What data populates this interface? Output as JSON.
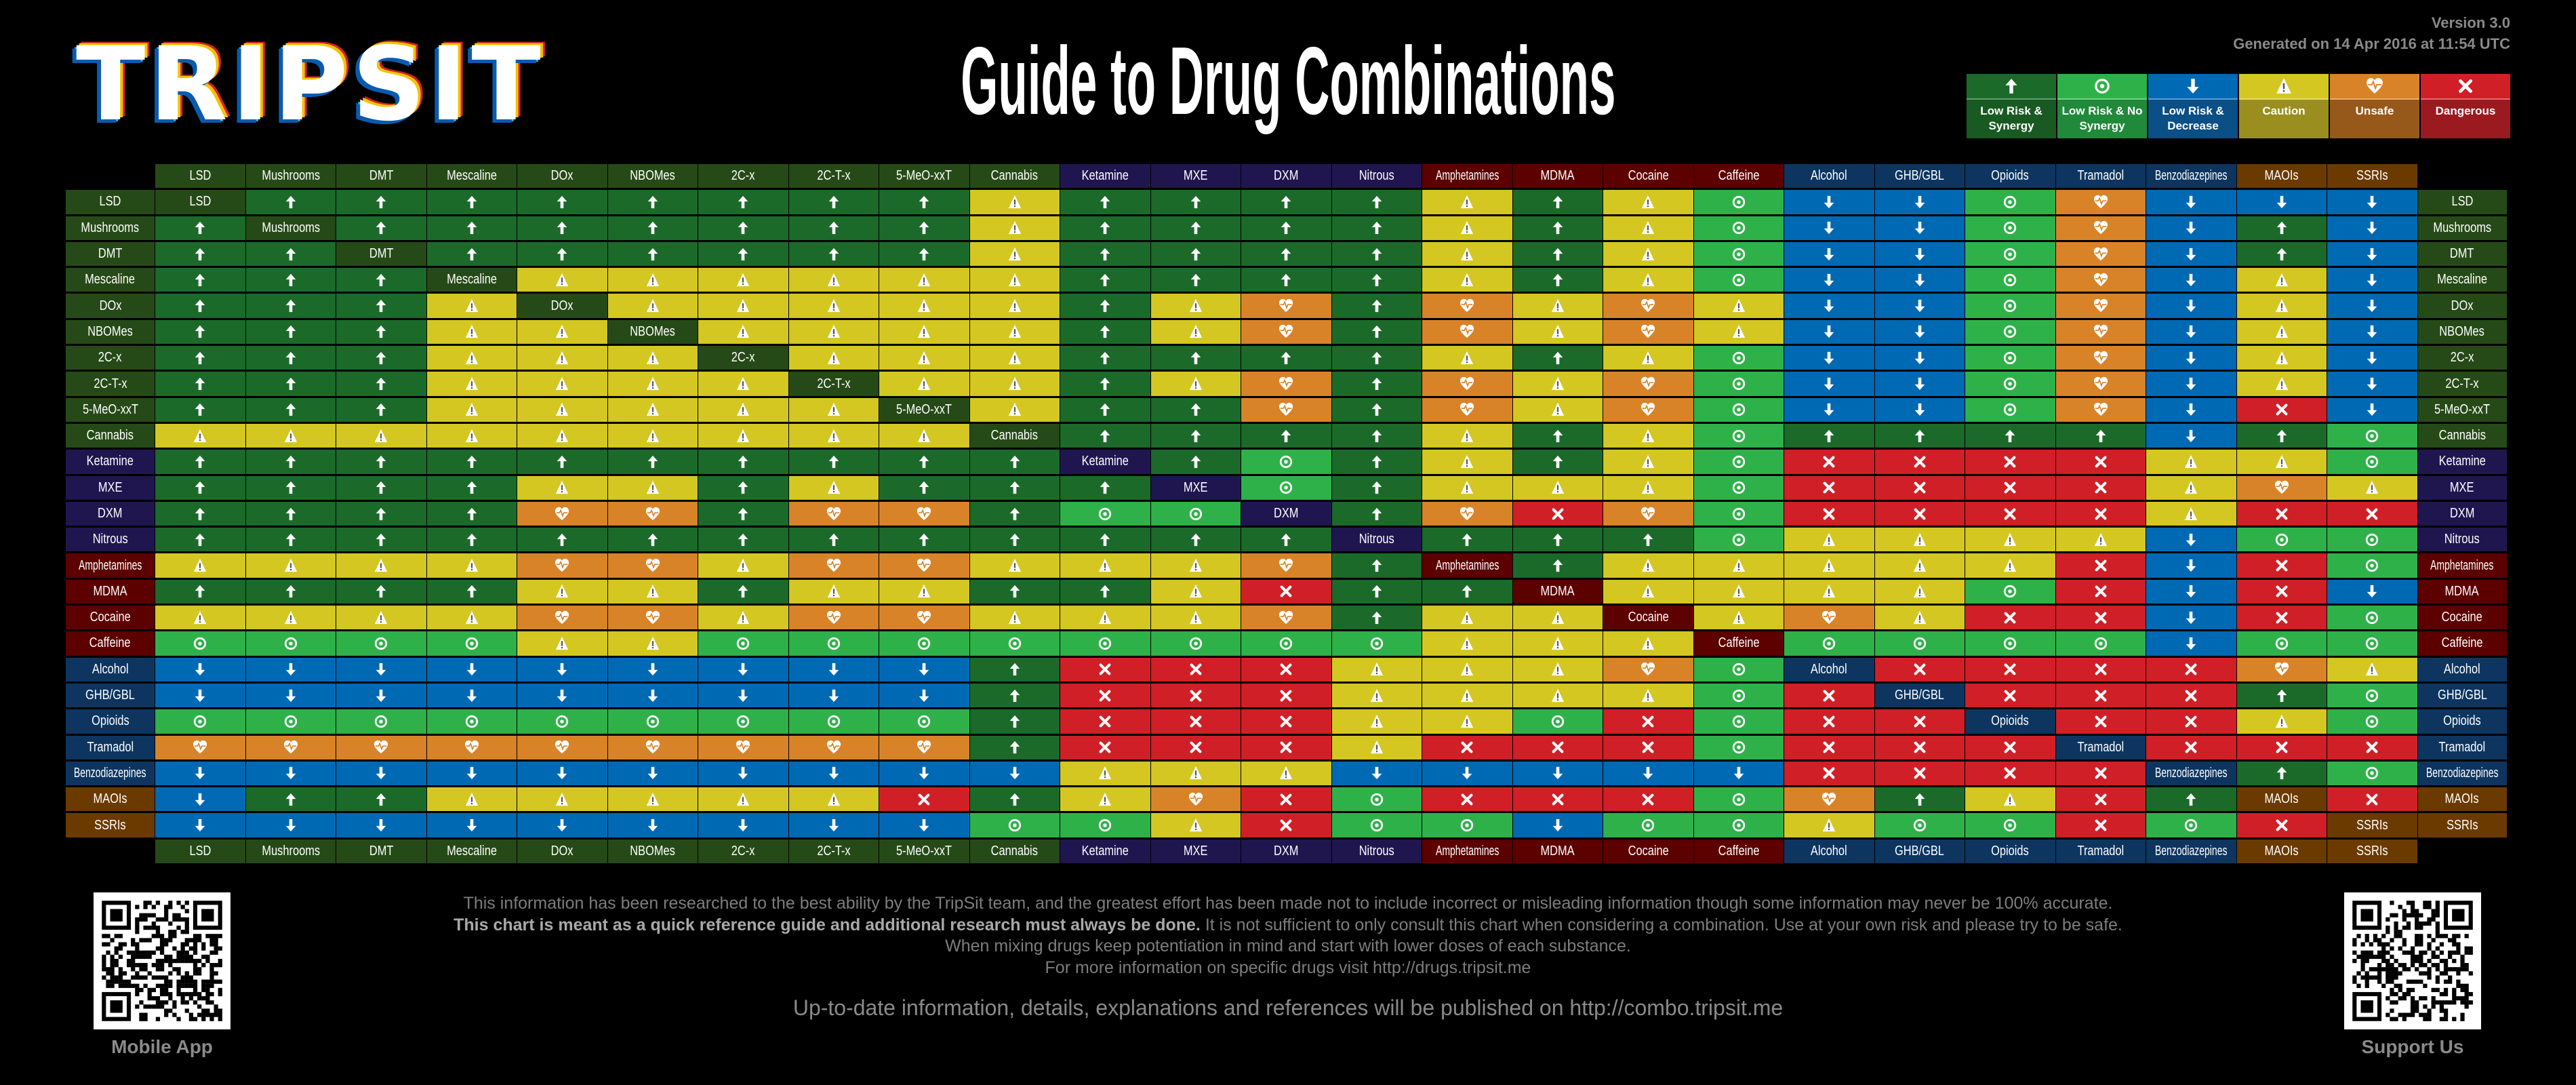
{
  "logo_text": "TRIPSIT",
  "title": "Guide to Drug Combinations",
  "version": "Version 3.0",
  "generated": "Generated on 14 Apr 2016 at 11:54 UTC",
  "legend": [
    {
      "code": "S",
      "label": "Low Risk & Synergy",
      "icon": "arrow-up",
      "color": "#1b6a2a",
      "dark": "#195a22"
    },
    {
      "code": "N",
      "label": "Low Risk & No Synergy",
      "icon": "target",
      "color": "#2fb14a",
      "dark": "#21893a"
    },
    {
      "code": "D",
      "label": "Low Risk & Decrease",
      "icon": "arrow-down",
      "color": "#0069b4",
      "dark": "#0a4f85"
    },
    {
      "code": "C",
      "label": "Caution",
      "icon": "warning",
      "color": "#d4c721",
      "dark": "#9a8f1e"
    },
    {
      "code": "U",
      "label": "Unsafe",
      "icon": "heart-pulse",
      "color": "#d98328",
      "dark": "#97591a"
    },
    {
      "code": "X",
      "label": "Dangerous",
      "icon": "cross",
      "color": "#d01f27",
      "dark": "#9a1a1f"
    }
  ],
  "group_colors": {
    "psychedelic": "#264a17",
    "dissociative": "#1f1650",
    "stimulant": "#5c0000",
    "depressant": "#0d3560",
    "serotonergic": "#6b3a00"
  },
  "drugs": [
    {
      "name": "LSD",
      "group": "psychedelic"
    },
    {
      "name": "Mushrooms",
      "group": "psychedelic"
    },
    {
      "name": "DMT",
      "group": "psychedelic"
    },
    {
      "name": "Mescaline",
      "group": "psychedelic"
    },
    {
      "name": "DOx",
      "group": "psychedelic"
    },
    {
      "name": "NBOMes",
      "group": "psychedelic"
    },
    {
      "name": "2C-x",
      "group": "psychedelic"
    },
    {
      "name": "2C-T-x",
      "group": "psychedelic"
    },
    {
      "name": "5-MeO-xxT",
      "group": "psychedelic"
    },
    {
      "name": "Cannabis",
      "group": "psychedelic"
    },
    {
      "name": "Ketamine",
      "group": "dissociative"
    },
    {
      "name": "MXE",
      "group": "dissociative"
    },
    {
      "name": "DXM",
      "group": "dissociative"
    },
    {
      "name": "Nitrous",
      "group": "dissociative"
    },
    {
      "name": "Amphetamines",
      "group": "stimulant"
    },
    {
      "name": "MDMA",
      "group": "stimulant"
    },
    {
      "name": "Cocaine",
      "group": "stimulant"
    },
    {
      "name": "Caffeine",
      "group": "stimulant"
    },
    {
      "name": "Alcohol",
      "group": "depressant"
    },
    {
      "name": "GHB/GBL",
      "group": "depressant"
    },
    {
      "name": "Opioids",
      "group": "depressant"
    },
    {
      "name": "Tramadol",
      "group": "depressant"
    },
    {
      "name": "Benzodiazepines",
      "group": "depressant"
    },
    {
      "name": "MAOIs",
      "group": "serotonergic"
    },
    {
      "name": "SSRIs",
      "group": "serotonergic"
    }
  ],
  "matrix": [
    [
      "-",
      "S",
      "S",
      "S",
      "S",
      "S",
      "S",
      "S",
      "S",
      "C",
      "S",
      "S",
      "S",
      "S",
      "C",
      "S",
      "C",
      "N",
      "D",
      "D",
      "N",
      "U",
      "D",
      "D",
      "D"
    ],
    [
      "S",
      "-",
      "S",
      "S",
      "S",
      "S",
      "S",
      "S",
      "S",
      "C",
      "S",
      "S",
      "S",
      "S",
      "C",
      "S",
      "C",
      "N",
      "D",
      "D",
      "N",
      "U",
      "D",
      "S",
      "D"
    ],
    [
      "S",
      "S",
      "-",
      "S",
      "S",
      "S",
      "S",
      "S",
      "S",
      "C",
      "S",
      "S",
      "S",
      "S",
      "C",
      "S",
      "C",
      "N",
      "D",
      "D",
      "N",
      "U",
      "D",
      "S",
      "D"
    ],
    [
      "S",
      "S",
      "S",
      "-",
      "C",
      "C",
      "C",
      "C",
      "C",
      "C",
      "S",
      "S",
      "S",
      "S",
      "C",
      "S",
      "C",
      "N",
      "D",
      "D",
      "N",
      "U",
      "D",
      "C",
      "D"
    ],
    [
      "S",
      "S",
      "S",
      "C",
      "-",
      "C",
      "C",
      "C",
      "C",
      "C",
      "S",
      "C",
      "U",
      "S",
      "U",
      "C",
      "U",
      "C",
      "D",
      "D",
      "N",
      "U",
      "D",
      "C",
      "D"
    ],
    [
      "S",
      "S",
      "S",
      "C",
      "C",
      "-",
      "C",
      "C",
      "C",
      "C",
      "S",
      "C",
      "U",
      "S",
      "U",
      "C",
      "U",
      "C",
      "D",
      "D",
      "N",
      "U",
      "D",
      "C",
      "D"
    ],
    [
      "S",
      "S",
      "S",
      "C",
      "C",
      "C",
      "-",
      "C",
      "C",
      "C",
      "S",
      "S",
      "S",
      "S",
      "C",
      "S",
      "C",
      "N",
      "D",
      "D",
      "N",
      "U",
      "D",
      "C",
      "D"
    ],
    [
      "S",
      "S",
      "S",
      "C",
      "C",
      "C",
      "C",
      "-",
      "C",
      "C",
      "S",
      "C",
      "U",
      "S",
      "U",
      "C",
      "U",
      "N",
      "D",
      "D",
      "N",
      "U",
      "D",
      "C",
      "D"
    ],
    [
      "S",
      "S",
      "S",
      "C",
      "C",
      "C",
      "C",
      "C",
      "-",
      "C",
      "S",
      "S",
      "U",
      "S",
      "U",
      "C",
      "U",
      "N",
      "D",
      "D",
      "N",
      "U",
      "D",
      "X",
      "D"
    ],
    [
      "C",
      "C",
      "C",
      "C",
      "C",
      "C",
      "C",
      "C",
      "C",
      "-",
      "S",
      "S",
      "S",
      "S",
      "C",
      "S",
      "C",
      "N",
      "S",
      "S",
      "S",
      "S",
      "D",
      "S",
      "N"
    ],
    [
      "S",
      "S",
      "S",
      "S",
      "S",
      "S",
      "S",
      "S",
      "S",
      "S",
      "-",
      "S",
      "N",
      "S",
      "C",
      "S",
      "C",
      "N",
      "X",
      "X",
      "X",
      "X",
      "C",
      "C",
      "N"
    ],
    [
      "S",
      "S",
      "S",
      "S",
      "C",
      "C",
      "S",
      "C",
      "S",
      "S",
      "S",
      "-",
      "N",
      "S",
      "C",
      "C",
      "C",
      "N",
      "X",
      "X",
      "X",
      "X",
      "C",
      "U",
      "C"
    ],
    [
      "S",
      "S",
      "S",
      "S",
      "U",
      "U",
      "S",
      "U",
      "U",
      "S",
      "N",
      "N",
      "-",
      "S",
      "U",
      "X",
      "U",
      "N",
      "X",
      "X",
      "X",
      "X",
      "C",
      "X",
      "X"
    ],
    [
      "S",
      "S",
      "S",
      "S",
      "S",
      "S",
      "S",
      "S",
      "S",
      "S",
      "S",
      "S",
      "S",
      "-",
      "S",
      "S",
      "S",
      "N",
      "C",
      "C",
      "C",
      "C",
      "D",
      "N",
      "N"
    ],
    [
      "C",
      "C",
      "C",
      "C",
      "U",
      "U",
      "C",
      "U",
      "U",
      "C",
      "C",
      "C",
      "U",
      "S",
      "-",
      "S",
      "C",
      "C",
      "C",
      "C",
      "C",
      "X",
      "D",
      "X",
      "N"
    ],
    [
      "S",
      "S",
      "S",
      "S",
      "C",
      "C",
      "S",
      "C",
      "C",
      "S",
      "S",
      "C",
      "X",
      "S",
      "S",
      "-",
      "C",
      "C",
      "C",
      "C",
      "N",
      "X",
      "D",
      "X",
      "D"
    ],
    [
      "C",
      "C",
      "C",
      "C",
      "U",
      "U",
      "C",
      "U",
      "U",
      "C",
      "C",
      "C",
      "U",
      "S",
      "C",
      "C",
      "-",
      "C",
      "U",
      "C",
      "X",
      "X",
      "D",
      "X",
      "N"
    ],
    [
      "N",
      "N",
      "N",
      "N",
      "C",
      "C",
      "N",
      "N",
      "N",
      "N",
      "N",
      "N",
      "N",
      "N",
      "C",
      "C",
      "C",
      "-",
      "N",
      "N",
      "N",
      "N",
      "D",
      "N",
      "N"
    ],
    [
      "D",
      "D",
      "D",
      "D",
      "D",
      "D",
      "D",
      "D",
      "D",
      "S",
      "X",
      "X",
      "X",
      "C",
      "C",
      "C",
      "U",
      "N",
      "-",
      "X",
      "X",
      "X",
      "X",
      "U",
      "C"
    ],
    [
      "D",
      "D",
      "D",
      "D",
      "D",
      "D",
      "D",
      "D",
      "D",
      "S",
      "X",
      "X",
      "X",
      "C",
      "C",
      "C",
      "C",
      "N",
      "X",
      "-",
      "X",
      "X",
      "X",
      "S",
      "N"
    ],
    [
      "N",
      "N",
      "N",
      "N",
      "N",
      "N",
      "N",
      "N",
      "N",
      "S",
      "X",
      "X",
      "X",
      "C",
      "C",
      "N",
      "X",
      "N",
      "X",
      "X",
      "-",
      "X",
      "X",
      "C",
      "N"
    ],
    [
      "U",
      "U",
      "U",
      "U",
      "U",
      "U",
      "U",
      "U",
      "U",
      "S",
      "X",
      "X",
      "X",
      "C",
      "X",
      "X",
      "X",
      "N",
      "X",
      "X",
      "X",
      "-",
      "X",
      "X",
      "X"
    ],
    [
      "D",
      "D",
      "D",
      "D",
      "D",
      "D",
      "D",
      "D",
      "D",
      "D",
      "C",
      "C",
      "C",
      "D",
      "D",
      "D",
      "D",
      "D",
      "X",
      "X",
      "X",
      "X",
      "-",
      "S",
      "N"
    ],
    [
      "D",
      "S",
      "S",
      "C",
      "C",
      "C",
      "C",
      "C",
      "X",
      "S",
      "C",
      "U",
      "X",
      "N",
      "X",
      "X",
      "X",
      "N",
      "U",
      "S",
      "C",
      "X",
      "S",
      "-",
      "X"
    ],
    [
      "D",
      "D",
      "D",
      "D",
      "D",
      "D",
      "D",
      "D",
      "D",
      "N",
      "N",
      "C",
      "X",
      "N",
      "N",
      "D",
      "N",
      "N",
      "C",
      "N",
      "N",
      "X",
      "N",
      "X",
      "-"
    ]
  ],
  "footer": {
    "line1": "This information has been researched to the best ability by the TripSit team, and the greatest effort has been made not to include incorrect or misleading information though some information may never be 100% accurate.",
    "line2_bold": "This chart is meant as a quick reference guide and additional research must always be done.",
    "line2_rest": " It is not sufficient to only consult this chart when considering a combination. Use at your own risk and please try to be safe.",
    "line3": "When mixing drugs keep potentiation in mind and start with lower doses of each substance.",
    "line4": "For more information on specific drugs visit http://drugs.tripsit.me",
    "line5": "Up-to-date information, details, explanations and references will be published on http://combo.tripsit.me"
  },
  "qr_left_label": "Mobile App",
  "qr_right_label": "Support Us"
}
